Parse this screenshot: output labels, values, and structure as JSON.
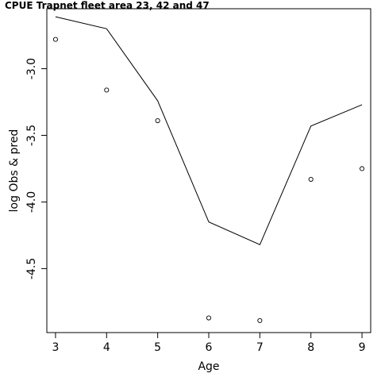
{
  "chart_data": {
    "type": "line",
    "title": "CPUE Trapnet fleet area 23, 42 and 47",
    "xlabel": "Age",
    "ylabel": "log Obs & pred",
    "xlim": [
      2.83,
      9.17
    ],
    "ylim": [
      -4.98,
      -2.55
    ],
    "x_ticks": [
      3,
      4,
      5,
      6,
      7,
      8,
      9
    ],
    "y_ticks": [
      -3.0,
      -3.5,
      -4.0,
      -4.5
    ],
    "y_tick_labels": [
      "-3.0",
      "-3.5",
      "-4.0",
      "-4.5"
    ],
    "grid": false,
    "series": [
      {
        "style": "points",
        "x": [
          3,
          4,
          5,
          6,
          7,
          8,
          9
        ],
        "y": [
          -2.78,
          -3.16,
          -3.39,
          -4.87,
          -4.89,
          -3.83,
          -3.75
        ]
      },
      {
        "style": "line",
        "x": [
          3,
          4,
          5,
          6,
          7,
          8,
          9
        ],
        "y": [
          -2.61,
          -2.7,
          -3.24,
          -4.15,
          -4.32,
          -3.43,
          -3.27
        ]
      }
    ]
  }
}
